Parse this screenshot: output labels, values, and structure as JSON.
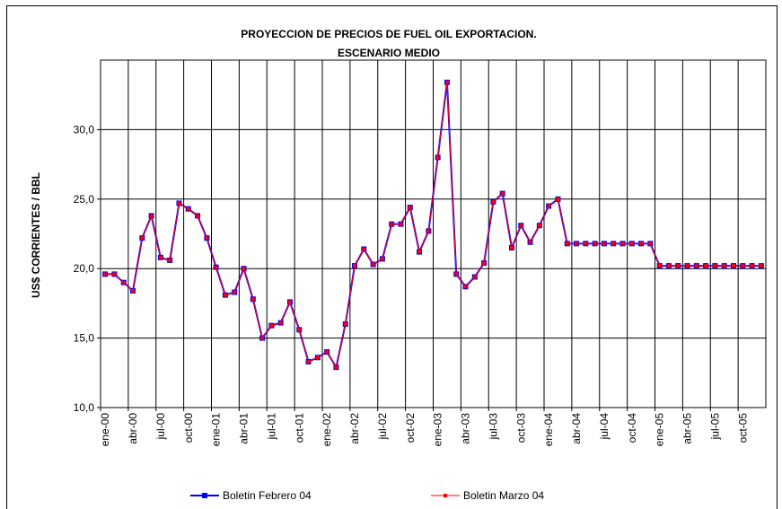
{
  "chart_data": {
    "type": "line",
    "title": [
      "PROYECCION DE PRECIOS DE FUEL OIL EXPORTACION.",
      "ESCENARIO MEDIO"
    ],
    "y_label": "US$ CORRIENTES / BBL",
    "categories": [
      "ene-00",
      null,
      null,
      "abr-00",
      null,
      null,
      "jul-00",
      null,
      null,
      "oct-00",
      null,
      null,
      "ene-01",
      null,
      null,
      "abr-01",
      null,
      null,
      "jul-01",
      null,
      null,
      "oct-01",
      null,
      null,
      "ene-02",
      null,
      null,
      "abr-02",
      null,
      null,
      "jul-02",
      null,
      null,
      "oct-02",
      null,
      null,
      "ene-03",
      null,
      null,
      "abr-03",
      null,
      null,
      "jul-03",
      null,
      null,
      "oct-03",
      null,
      null,
      "ene-04",
      null,
      null,
      "abr-04",
      null,
      null,
      "jul-04",
      null,
      null,
      "oct-04",
      null,
      null,
      "ene-05",
      null,
      null,
      "abr-05",
      null,
      null,
      "jul-05",
      null,
      null,
      "oct-05",
      null,
      null
    ],
    "series": [
      {
        "name": "Boletin Febrero 04",
        "color": "#0000ff",
        "values": [
          19.6,
          19.6,
          19.0,
          18.4,
          22.2,
          23.8,
          20.8,
          20.6,
          24.7,
          24.3,
          23.8,
          22.2,
          20.1,
          18.1,
          18.3,
          20.0,
          17.8,
          15.0,
          15.9,
          16.1,
          17.6,
          15.6,
          13.3,
          13.6,
          14.0,
          12.9,
          16.0,
          20.2,
          21.4,
          20.3,
          20.7,
          23.2,
          23.2,
          24.4,
          21.2,
          22.7,
          28.0,
          33.4,
          19.6,
          18.7,
          19.4,
          20.4,
          24.8,
          25.4,
          21.5,
          23.1,
          21.9,
          23.1,
          24.5,
          25.0,
          21.8,
          21.8,
          21.8,
          21.8,
          21.8,
          21.8,
          21.8,
          21.8,
          21.8,
          21.8,
          20.2,
          20.2,
          20.2,
          20.2,
          20.2,
          20.2,
          20.2,
          20.2,
          20.2,
          20.2,
          20.2,
          20.2
        ]
      },
      {
        "name": "Boletin Marzo 04",
        "color": "#ff0000",
        "values": [
          19.6,
          19.6,
          19.0,
          18.4,
          22.2,
          23.8,
          20.8,
          20.6,
          24.7,
          24.3,
          23.8,
          22.2,
          20.1,
          18.1,
          18.3,
          20.0,
          17.8,
          15.0,
          15.9,
          16.1,
          17.6,
          15.6,
          13.3,
          13.6,
          14.0,
          12.9,
          16.0,
          20.2,
          21.4,
          20.3,
          20.7,
          23.2,
          23.2,
          24.4,
          21.2,
          22.7,
          28.0,
          33.4,
          19.6,
          18.7,
          19.4,
          20.4,
          24.8,
          25.4,
          21.5,
          23.1,
          21.9,
          23.1,
          24.5,
          25.0,
          21.8,
          21.8,
          21.8,
          21.8,
          21.8,
          21.8,
          21.8,
          21.8,
          21.8,
          21.8,
          20.2,
          20.2,
          20.2,
          20.2,
          20.2,
          20.2,
          20.2,
          20.2,
          20.2,
          20.2,
          20.2,
          20.2
        ]
      }
    ],
    "ylim": [
      10,
      35
    ],
    "yticks": [
      {
        "value": 10,
        "label": "10,0"
      },
      {
        "value": 15,
        "label": "15,0"
      },
      {
        "value": 20,
        "label": "20,0"
      },
      {
        "value": 25,
        "label": "25,0"
      },
      {
        "value": 30,
        "label": "30,0"
      }
    ],
    "grid": true,
    "legend": "bottom"
  }
}
